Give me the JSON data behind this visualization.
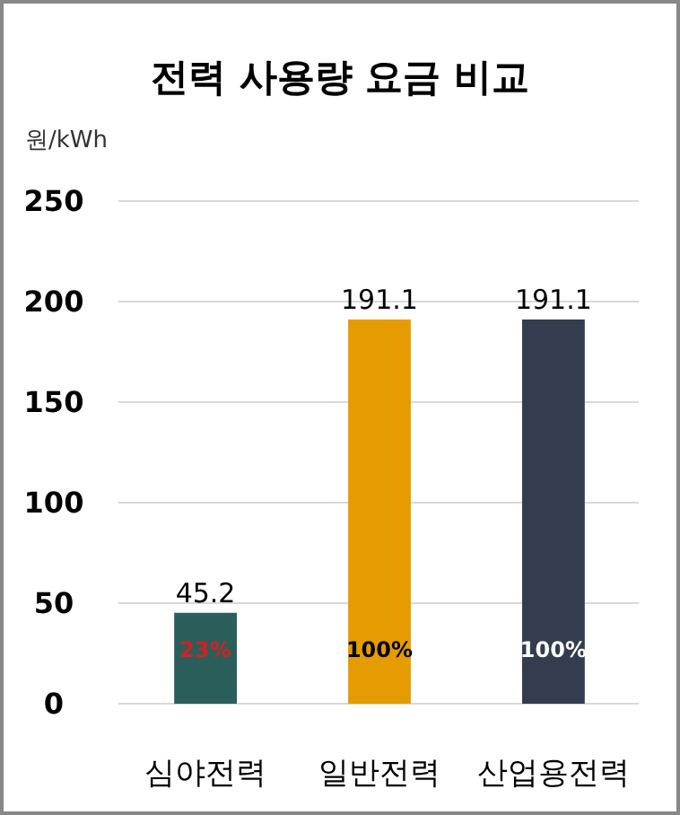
{
  "chart_data": {
    "type": "bar",
    "title": "전력 사용량 요금 비교",
    "ylabel": "원/kWh",
    "categories": [
      "심야전력",
      "일반전력",
      "산업용전력"
    ],
    "values": [
      45.2,
      191.1,
      191.1
    ],
    "colors": [
      "#2a5e5a",
      "#e59c00",
      "#333d4f"
    ],
    "ylim": [
      0,
      250
    ],
    "yticks": [
      0,
      50,
      100,
      150,
      200,
      250
    ],
    "grid": "y",
    "data_labels": true,
    "annotations": [
      "23%",
      "100%",
      "100%"
    ]
  }
}
